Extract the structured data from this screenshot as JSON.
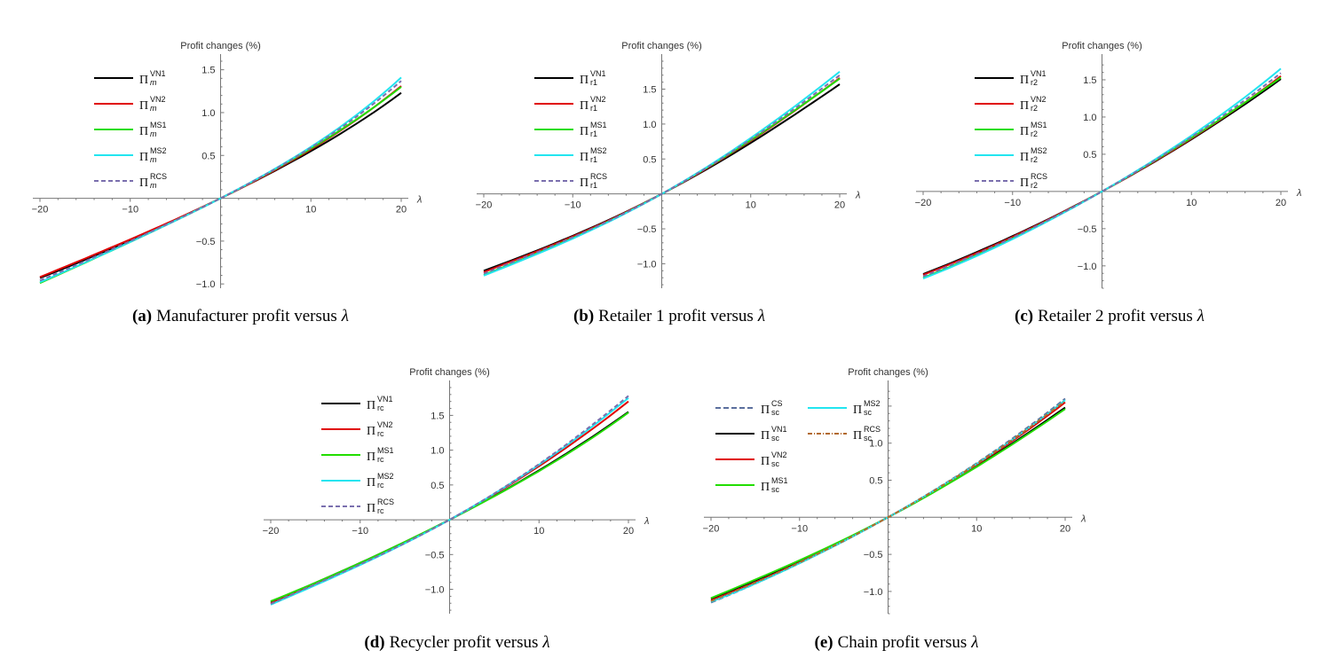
{
  "colors": {
    "VN1": "#000000",
    "VN2": "#e00000",
    "MS1": "#22dd00",
    "MS2": "#22e5f0",
    "CS": "#5b6f9e",
    "RCS_purple": "#7a6fae",
    "RCS_brown": "#b26a2e"
  },
  "chart_data": [
    {
      "type": "line",
      "panel": "a",
      "caption_letter": "(a)",
      "caption_text": "Manufacturer profit versus",
      "caption_symbol": "λ",
      "ylabel": "Profit changes (%)",
      "xlabel": "λ",
      "xlim": [
        -20,
        20
      ],
      "ylim": [
        -1.05,
        1.6
      ],
      "xticks": [
        "−20",
        "−10",
        "10",
        "20"
      ],
      "xtick_values": [
        -20,
        -10,
        10,
        20
      ],
      "yticks": [
        "−1.0",
        "−0.5",
        "0.5",
        "1.0",
        "1.5"
      ],
      "ytick_values": [
        -1.0,
        -0.5,
        0.5,
        1.0,
        1.5
      ],
      "legend_position": "top-left",
      "x": [
        -20,
        -10,
        0,
        10,
        20
      ],
      "series": [
        {
          "key": "VN1",
          "pi": "Π",
          "sub": "m",
          "sup": "VN1",
          "color": "#000000",
          "dash": "",
          "values": [
            -0.93,
            -0.49,
            0,
            0.55,
            1.23
          ]
        },
        {
          "key": "VN2",
          "pi": "Π",
          "sub": "m",
          "sup": "VN2",
          "color": "#e00000",
          "dash": "",
          "values": [
            -0.92,
            -0.48,
            0,
            0.57,
            1.31
          ]
        },
        {
          "key": "MS1",
          "pi": "Π",
          "sub": "m",
          "sup": "MS1",
          "color": "#22dd00",
          "dash": "",
          "values": [
            -0.99,
            -0.51,
            0,
            0.58,
            1.3
          ]
        },
        {
          "key": "MS2",
          "pi": "Π",
          "sub": "m",
          "sup": "MS2",
          "color": "#22e5f0",
          "dash": "",
          "values": [
            -0.98,
            -0.51,
            0,
            0.6,
            1.41
          ]
        },
        {
          "key": "RCS",
          "pi": "Π",
          "sub": "m",
          "sup": "RCS",
          "color": "#7a6fae",
          "dash": "5,3",
          "values": [
            -0.96,
            -0.5,
            0,
            0.59,
            1.37
          ]
        }
      ]
    },
    {
      "type": "line",
      "panel": "b",
      "caption_letter": "(b)",
      "caption_text": "Retailer 1 profit versus",
      "caption_symbol": "λ",
      "ylabel": "Profit changes (%)",
      "xlabel": "λ",
      "xlim": [
        -20,
        20
      ],
      "ylim": [
        -1.35,
        1.9
      ],
      "xticks": [
        "−20",
        "−10",
        "10",
        "20"
      ],
      "xtick_values": [
        -20,
        -10,
        10,
        20
      ],
      "yticks": [
        "−1.0",
        "−0.5",
        "0.5",
        "1.0",
        "1.5"
      ],
      "ytick_values": [
        -1.0,
        -0.5,
        0.5,
        1.0,
        1.5
      ],
      "legend_position": "top-left",
      "x": [
        -20,
        -10,
        0,
        10,
        20
      ],
      "series": [
        {
          "key": "VN1",
          "pi": "Π",
          "sub": "r1",
          "sup": "VN1",
          "color": "#000000",
          "dash": "",
          "values": [
            -1.1,
            -0.6,
            0,
            0.73,
            1.57
          ]
        },
        {
          "key": "VN2",
          "pi": "Π",
          "sub": "r1",
          "sup": "VN2",
          "color": "#e00000",
          "dash": "",
          "values": [
            -1.12,
            -0.61,
            0,
            0.76,
            1.66
          ]
        },
        {
          "key": "MS1",
          "pi": "Π",
          "sub": "r1",
          "sup": "MS1",
          "color": "#22dd00",
          "dash": "",
          "values": [
            -1.16,
            -0.63,
            0,
            0.77,
            1.65
          ]
        },
        {
          "key": "MS2",
          "pi": "Π",
          "sub": "r1",
          "sup": "MS2",
          "color": "#22e5f0",
          "dash": "",
          "values": [
            -1.17,
            -0.64,
            0,
            0.8,
            1.75
          ]
        },
        {
          "key": "RCS",
          "pi": "Π",
          "sub": "r1",
          "sup": "RCS",
          "color": "#7a6fae",
          "dash": "5,3",
          "values": [
            -1.14,
            -0.62,
            0,
            0.78,
            1.7
          ]
        }
      ]
    },
    {
      "type": "line",
      "panel": "c",
      "caption_letter": "(c)",
      "caption_text": "Retailer 2 profit versus",
      "caption_symbol": "λ",
      "ylabel": "Profit changes (%)",
      "xlabel": "λ",
      "xlim": [
        -20,
        20
      ],
      "ylim": [
        -1.3,
        1.75
      ],
      "xticks": [
        "−20",
        "−10",
        "10",
        "20"
      ],
      "xtick_values": [
        -20,
        -10,
        10,
        20
      ],
      "yticks": [
        "−1.0",
        "−0.5",
        "0.5",
        "1.0",
        "1.5"
      ],
      "ytick_values": [
        -1.0,
        -0.5,
        0.5,
        1.0,
        1.5
      ],
      "legend_position": "top-left",
      "x": [
        -20,
        -10,
        0,
        10,
        20
      ],
      "series": [
        {
          "key": "VN1",
          "pi": "Π",
          "sub": "r2",
          "sup": "VN1",
          "color": "#000000",
          "dash": "",
          "values": [
            -1.11,
            -0.6,
            0,
            0.7,
            1.51
          ]
        },
        {
          "key": "VN2",
          "pi": "Π",
          "sub": "r2",
          "sup": "VN2",
          "color": "#e00000",
          "dash": "",
          "values": [
            -1.12,
            -0.61,
            0,
            0.71,
            1.55
          ]
        },
        {
          "key": "MS1",
          "pi": "Π",
          "sub": "r2",
          "sup": "MS1",
          "color": "#22dd00",
          "dash": "",
          "values": [
            -1.16,
            -0.63,
            0,
            0.72,
            1.53
          ]
        },
        {
          "key": "MS2",
          "pi": "Π",
          "sub": "r2",
          "sup": "MS2",
          "color": "#22e5f0",
          "dash": "",
          "values": [
            -1.17,
            -0.64,
            0,
            0.75,
            1.65
          ]
        },
        {
          "key": "RCS",
          "pi": "Π",
          "sub": "r2",
          "sup": "RCS",
          "color": "#7a6fae",
          "dash": "5,3",
          "values": [
            -1.14,
            -0.62,
            0,
            0.73,
            1.59
          ]
        }
      ]
    },
    {
      "type": "line",
      "panel": "d",
      "caption_letter": "(d)",
      "caption_text": "Recycler profit versus",
      "caption_symbol": "λ",
      "ylabel": "Profit changes (%)",
      "xlabel": "λ",
      "xlim": [
        -20,
        20
      ],
      "ylim": [
        -1.35,
        1.9
      ],
      "xticks": [
        "−20",
        "−10",
        "10",
        "20"
      ],
      "xtick_values": [
        -20,
        -10,
        10,
        20
      ],
      "yticks": [
        "−1.0",
        "−0.5",
        "0.5",
        "1.0",
        "1.5"
      ],
      "ytick_values": [
        -1.0,
        -0.5,
        0.5,
        1.0,
        1.5
      ],
      "legend_position": "top-left",
      "x": [
        -20,
        -10,
        0,
        10,
        20
      ],
      "series": [
        {
          "key": "VN1",
          "pi": "Π",
          "sub": "rc",
          "sup": "VN1",
          "color": "#000000",
          "dash": "",
          "values": [
            -1.18,
            -0.62,
            0,
            0.71,
            1.55
          ]
        },
        {
          "key": "VN2",
          "pi": "Π",
          "sub": "rc",
          "sup": "VN2",
          "color": "#e00000",
          "dash": "",
          "values": [
            -1.2,
            -0.64,
            0,
            0.77,
            1.7
          ]
        },
        {
          "key": "MS1",
          "pi": "Π",
          "sub": "rc",
          "sup": "MS1",
          "color": "#22dd00",
          "dash": "",
          "values": [
            -1.17,
            -0.62,
            0,
            0.7,
            1.54
          ]
        },
        {
          "key": "MS2",
          "pi": "Π",
          "sub": "rc",
          "sup": "MS2",
          "color": "#22e5f0",
          "dash": "",
          "values": [
            -1.22,
            -0.65,
            0,
            0.79,
            1.75
          ]
        },
        {
          "key": "RCS",
          "pi": "Π",
          "sub": "rc",
          "sup": "RCS",
          "color": "#7a6fae",
          "dash": "5,3",
          "values": [
            -1.21,
            -0.64,
            0,
            0.8,
            1.78
          ]
        }
      ]
    },
    {
      "type": "line",
      "panel": "e",
      "caption_letter": "(e)",
      "caption_text": "Chain profit versus",
      "caption_symbol": "λ",
      "ylabel": "Profit changes (%)",
      "xlabel": "λ",
      "xlim": [
        -20,
        20
      ],
      "ylim": [
        -1.3,
        1.75
      ],
      "xticks": [
        "−20",
        "−10",
        "10",
        "20"
      ],
      "xtick_values": [
        -20,
        -10,
        10,
        20
      ],
      "yticks": [
        "−1.0",
        "−0.5",
        "0.5",
        "1.0"
      ],
      "ytick_values": [
        -1.0,
        -0.5,
        0.5,
        1.0
      ],
      "legend_position": "top-left, two columns",
      "x": [
        -20,
        -10,
        0,
        10,
        20
      ],
      "series": [
        {
          "key": "CS",
          "pi": "Π",
          "sub": "sc",
          "sup": "CS",
          "color": "#5b6f9e",
          "dash": "6,3",
          "values": [
            -1.15,
            -0.62,
            0,
            0.73,
            1.6
          ]
        },
        {
          "key": "VN1",
          "pi": "Π",
          "sub": "sc",
          "sup": "VN1",
          "color": "#000000",
          "dash": "",
          "values": [
            -1.1,
            -0.59,
            0,
            0.69,
            1.48
          ]
        },
        {
          "key": "VN2",
          "pi": "Π",
          "sub": "sc",
          "sup": "VN2",
          "color": "#e00000",
          "dash": "",
          "values": [
            -1.12,
            -0.61,
            0,
            0.71,
            1.55
          ]
        },
        {
          "key": "MS1",
          "pi": "Π",
          "sub": "sc",
          "sup": "MS1",
          "color": "#22dd00",
          "dash": "",
          "values": [
            -1.09,
            -0.58,
            0,
            0.68,
            1.46
          ]
        },
        {
          "key": "MS2",
          "pi": "Π",
          "sub": "sc",
          "sup": "MS2",
          "color": "#22e5f0",
          "dash": "",
          "values": [
            -1.14,
            -0.62,
            0,
            0.72,
            1.58
          ]
        },
        {
          "key": "RCS",
          "pi": "Π",
          "sub": "sc",
          "sup": "RCS",
          "color": "#b26a2e",
          "dash": "5,2,1,2",
          "values": [
            -1.13,
            -0.61,
            0,
            0.72,
            1.57
          ]
        }
      ]
    }
  ]
}
